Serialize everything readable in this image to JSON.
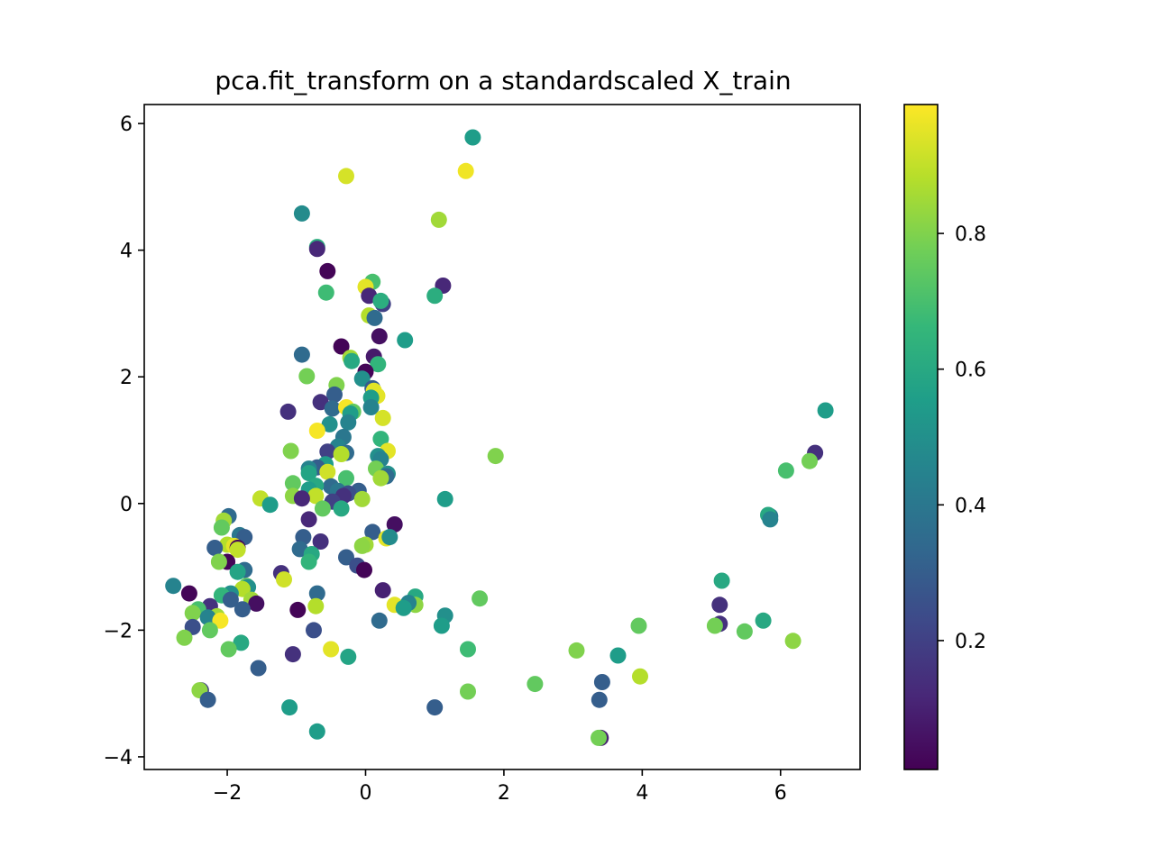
{
  "chart_data": {
    "type": "scatter",
    "title": "pca.fit_transform on a standardscaled X_train",
    "xlabel": "",
    "ylabel": "",
    "xlim": [
      -3.2,
      7.15
    ],
    "ylim": [
      -4.2,
      6.3
    ],
    "xticks": [
      -2,
      0,
      2,
      4,
      6
    ],
    "yticks": [
      -4,
      -2,
      0,
      2,
      4,
      6
    ],
    "colorbar": {
      "cmap": "viridis",
      "range": [
        0.01,
        0.99
      ],
      "ticks": [
        0.2,
        0.4,
        0.6,
        0.8
      ],
      "colors": [
        "#440154",
        "#482878",
        "#3e4989",
        "#31688e",
        "#26828e",
        "#1f9e89",
        "#35b779",
        "#6ece58",
        "#b5de2b",
        "#fde725"
      ]
    },
    "grid": false,
    "points": [
      {
        "x": 1.55,
        "y": 5.78,
        "c": 0.55
      },
      {
        "x": -0.28,
        "y": 5.17,
        "c": 0.93
      },
      {
        "x": 1.45,
        "y": 5.25,
        "c": 0.97
      },
      {
        "x": -0.92,
        "y": 4.58,
        "c": 0.48
      },
      {
        "x": 1.06,
        "y": 4.48,
        "c": 0.85
      },
      {
        "x": -0.7,
        "y": 4.05,
        "c": 0.62
      },
      {
        "x": -0.7,
        "y": 4.02,
        "c": 0.12
      },
      {
        "x": -0.55,
        "y": 3.67,
        "c": 0.02
      },
      {
        "x": 1.12,
        "y": 3.44,
        "c": 0.12
      },
      {
        "x": 0.1,
        "y": 3.5,
        "c": 0.7
      },
      {
        "x": -0.57,
        "y": 3.33,
        "c": 0.68
      },
      {
        "x": 0.0,
        "y": 3.42,
        "c": 0.95
      },
      {
        "x": 0.05,
        "y": 3.28,
        "c": 0.12
      },
      {
        "x": 1.0,
        "y": 3.28,
        "c": 0.62
      },
      {
        "x": 0.25,
        "y": 3.15,
        "c": 0.2
      },
      {
        "x": 0.22,
        "y": 3.2,
        "c": 0.62
      },
      {
        "x": 0.05,
        "y": 2.97,
        "c": 0.88
      },
      {
        "x": 0.13,
        "y": 2.93,
        "c": 0.35
      },
      {
        "x": 0.57,
        "y": 2.58,
        "c": 0.55
      },
      {
        "x": 0.2,
        "y": 2.64,
        "c": 0.05
      },
      {
        "x": -0.35,
        "y": 2.48,
        "c": 0.02
      },
      {
        "x": -0.92,
        "y": 2.35,
        "c": 0.35
      },
      {
        "x": -0.22,
        "y": 2.3,
        "c": 0.85
      },
      {
        "x": 0.12,
        "y": 2.32,
        "c": 0.08
      },
      {
        "x": -0.2,
        "y": 2.25,
        "c": 0.6
      },
      {
        "x": 0.18,
        "y": 2.2,
        "c": 0.65
      },
      {
        "x": 0.0,
        "y": 2.08,
        "c": 0.02
      },
      {
        "x": -0.85,
        "y": 2.01,
        "c": 0.78
      },
      {
        "x": -0.05,
        "y": 1.97,
        "c": 0.5
      },
      {
        "x": -0.42,
        "y": 1.87,
        "c": 0.8
      },
      {
        "x": 0.1,
        "y": 1.82,
        "c": 0.3
      },
      {
        "x": 0.12,
        "y": 1.78,
        "c": 0.95
      },
      {
        "x": -0.45,
        "y": 1.72,
        "c": 0.3
      },
      {
        "x": 0.17,
        "y": 1.7,
        "c": 0.95
      },
      {
        "x": 0.08,
        "y": 1.67,
        "c": 0.55
      },
      {
        "x": -0.65,
        "y": 1.6,
        "c": 0.15
      },
      {
        "x": -0.48,
        "y": 1.5,
        "c": 0.35
      },
      {
        "x": -0.28,
        "y": 1.52,
        "c": 0.98
      },
      {
        "x": 0.08,
        "y": 1.52,
        "c": 0.45
      },
      {
        "x": -1.12,
        "y": 1.45,
        "c": 0.15
      },
      {
        "x": -0.18,
        "y": 1.45,
        "c": 0.75
      },
      {
        "x": -0.22,
        "y": 1.42,
        "c": 0.55
      },
      {
        "x": 0.25,
        "y": 1.35,
        "c": 0.93
      },
      {
        "x": -0.25,
        "y": 1.28,
        "c": 0.45
      },
      {
        "x": -0.52,
        "y": 1.25,
        "c": 0.5
      },
      {
        "x": -0.7,
        "y": 1.15,
        "c": 0.98
      },
      {
        "x": -0.32,
        "y": 1.05,
        "c": 0.4
      },
      {
        "x": 0.22,
        "y": 1.02,
        "c": 0.65
      },
      {
        "x": -0.4,
        "y": 0.9,
        "c": 0.45
      },
      {
        "x": 0.32,
        "y": 0.83,
        "c": 0.95
      },
      {
        "x": -1.08,
        "y": 0.83,
        "c": 0.8
      },
      {
        "x": -0.55,
        "y": 0.82,
        "c": 0.2
      },
      {
        "x": -0.28,
        "y": 0.8,
        "c": 0.35
      },
      {
        "x": -0.35,
        "y": 0.78,
        "c": 0.88
      },
      {
        "x": 1.88,
        "y": 0.75,
        "c": 0.8
      },
      {
        "x": 0.18,
        "y": 0.75,
        "c": 0.5
      },
      {
        "x": 0.22,
        "y": 0.7,
        "c": 0.45
      },
      {
        "x": -0.58,
        "y": 0.62,
        "c": 0.55
      },
      {
        "x": -0.7,
        "y": 0.57,
        "c": 0.3
      },
      {
        "x": -0.82,
        "y": 0.55,
        "c": 0.45
      },
      {
        "x": 0.15,
        "y": 0.55,
        "c": 0.78
      },
      {
        "x": -0.55,
        "y": 0.5,
        "c": 0.92
      },
      {
        "x": -0.82,
        "y": 0.48,
        "c": 0.58
      },
      {
        "x": 0.32,
        "y": 0.47,
        "c": 0.5
      },
      {
        "x": 0.3,
        "y": 0.43,
        "c": 0.35
      },
      {
        "x": 0.22,
        "y": 0.4,
        "c": 0.85
      },
      {
        "x": -0.28,
        "y": 0.4,
        "c": 0.7
      },
      {
        "x": -1.05,
        "y": 0.32,
        "c": 0.75
      },
      {
        "x": -0.5,
        "y": 0.27,
        "c": 0.35
      },
      {
        "x": -0.72,
        "y": 0.28,
        "c": 0.6
      },
      {
        "x": -0.82,
        "y": 0.22,
        "c": 0.55
      },
      {
        "x": -0.4,
        "y": 0.2,
        "c": 0.4
      },
      {
        "x": -0.1,
        "y": 0.2,
        "c": 0.3
      },
      {
        "x": -0.25,
        "y": 0.16,
        "c": 0.25
      },
      {
        "x": -0.32,
        "y": 0.12,
        "c": 0.15
      },
      {
        "x": -1.05,
        "y": 0.12,
        "c": 0.82
      },
      {
        "x": -0.72,
        "y": 0.12,
        "c": 0.9
      },
      {
        "x": -0.92,
        "y": 0.08,
        "c": 0.12
      },
      {
        "x": -1.52,
        "y": 0.08,
        "c": 0.9
      },
      {
        "x": 1.15,
        "y": 0.07,
        "c": 0.55
      },
      {
        "x": -0.05,
        "y": 0.07,
        "c": 0.85
      },
      {
        "x": -0.48,
        "y": 0.03,
        "c": 0.2
      },
      {
        "x": -1.38,
        "y": -0.02,
        "c": 0.55
      },
      {
        "x": -0.62,
        "y": -0.08,
        "c": 0.75
      },
      {
        "x": -0.35,
        "y": -0.08,
        "c": 0.6
      },
      {
        "x": -1.98,
        "y": -0.2,
        "c": 0.35
      },
      {
        "x": -2.05,
        "y": -0.27,
        "c": 0.85
      },
      {
        "x": -0.82,
        "y": -0.25,
        "c": 0.12
      },
      {
        "x": 0.42,
        "y": -0.33,
        "c": 0.05
      },
      {
        "x": -2.08,
        "y": -0.38,
        "c": 0.75
      },
      {
        "x": 0.1,
        "y": -0.45,
        "c": 0.3
      },
      {
        "x": -1.82,
        "y": -0.5,
        "c": 0.4
      },
      {
        "x": -1.75,
        "y": -0.53,
        "c": 0.3
      },
      {
        "x": 0.3,
        "y": -0.55,
        "c": 0.95
      },
      {
        "x": 0.35,
        "y": -0.53,
        "c": 0.48
      },
      {
        "x": -0.9,
        "y": -0.53,
        "c": 0.3
      },
      {
        "x": -0.65,
        "y": -0.6,
        "c": 0.15
      },
      {
        "x": 0.0,
        "y": -0.65,
        "c": 0.85
      },
      {
        "x": -0.05,
        "y": -0.67,
        "c": 0.82
      },
      {
        "x": -2.0,
        "y": -0.65,
        "c": 0.88
      },
      {
        "x": -1.9,
        "y": -0.67,
        "c": 0.95
      },
      {
        "x": -2.18,
        "y": -0.7,
        "c": 0.3
      },
      {
        "x": -1.85,
        "y": -0.7,
        "c": 0.02
      },
      {
        "x": -0.95,
        "y": -0.72,
        "c": 0.35
      },
      {
        "x": -1.85,
        "y": -0.73,
        "c": 0.9
      },
      {
        "x": -0.78,
        "y": -0.8,
        "c": 0.6
      },
      {
        "x": -0.28,
        "y": -0.85,
        "c": 0.3
      },
      {
        "x": -0.82,
        "y": -0.92,
        "c": 0.65
      },
      {
        "x": -2.0,
        "y": -0.92,
        "c": 0.02
      },
      {
        "x": -2.12,
        "y": -0.92,
        "c": 0.8
      },
      {
        "x": -0.12,
        "y": -0.98,
        "c": 0.25
      },
      {
        "x": -0.02,
        "y": -1.05,
        "c": 0.02
      },
      {
        "x": -1.75,
        "y": -1.05,
        "c": 0.35
      },
      {
        "x": -1.85,
        "y": -1.08,
        "c": 0.58
      },
      {
        "x": -1.22,
        "y": -1.1,
        "c": 0.15
      },
      {
        "x": -1.18,
        "y": -1.2,
        "c": 0.92
      },
      {
        "x": -2.78,
        "y": -1.3,
        "c": 0.45
      },
      {
        "x": -1.72,
        "y": -1.3,
        "c": 0.75
      },
      {
        "x": -1.7,
        "y": -1.32,
        "c": 0.5
      },
      {
        "x": -1.78,
        "y": -1.35,
        "c": 0.88
      },
      {
        "x": 0.25,
        "y": -1.37,
        "c": 0.1
      },
      {
        "x": -2.55,
        "y": -1.42,
        "c": 0.02
      },
      {
        "x": -1.95,
        "y": -1.42,
        "c": 0.5
      },
      {
        "x": -2.08,
        "y": -1.45,
        "c": 0.65
      },
      {
        "x": -0.7,
        "y": -1.42,
        "c": 0.35
      },
      {
        "x": 0.72,
        "y": -1.47,
        "c": 0.6
      },
      {
        "x": -1.95,
        "y": -1.52,
        "c": 0.3
      },
      {
        "x": -1.65,
        "y": -1.52,
        "c": 0.85
      },
      {
        "x": 1.65,
        "y": -1.5,
        "c": 0.75
      },
      {
        "x": -1.58,
        "y": -1.58,
        "c": 0.05
      },
      {
        "x": 0.42,
        "y": -1.6,
        "c": 0.95
      },
      {
        "x": 0.72,
        "y": -1.6,
        "c": 0.82
      },
      {
        "x": 0.62,
        "y": -1.57,
        "c": 0.45
      },
      {
        "x": 0.55,
        "y": -1.65,
        "c": 0.55
      },
      {
        "x": -0.72,
        "y": -1.62,
        "c": 0.88
      },
      {
        "x": -2.25,
        "y": -1.62,
        "c": 0.15
      },
      {
        "x": -2.42,
        "y": -1.67,
        "c": 0.7
      },
      {
        "x": -1.78,
        "y": -1.67,
        "c": 0.3
      },
      {
        "x": -0.98,
        "y": -1.68,
        "c": 0.02
      },
      {
        "x": -2.5,
        "y": -1.73,
        "c": 0.8
      },
      {
        "x": -2.15,
        "y": -1.78,
        "c": 0.85
      },
      {
        "x": -2.28,
        "y": -1.8,
        "c": 0.45
      },
      {
        "x": 1.15,
        "y": -1.77,
        "c": 0.5
      },
      {
        "x": 0.2,
        "y": -1.85,
        "c": 0.35
      },
      {
        "x": -2.1,
        "y": -1.85,
        "c": 0.98
      },
      {
        "x": 5.75,
        "y": -1.85,
        "c": 0.6
      },
      {
        "x": 5.12,
        "y": -1.9,
        "c": 0.15
      },
      {
        "x": 1.1,
        "y": -1.93,
        "c": 0.55
      },
      {
        "x": 3.95,
        "y": -1.93,
        "c": 0.75
      },
      {
        "x": 5.05,
        "y": -1.93,
        "c": 0.78
      },
      {
        "x": -2.5,
        "y": -1.95,
        "c": 0.25
      },
      {
        "x": -2.25,
        "y": -2.0,
        "c": 0.75
      },
      {
        "x": 5.48,
        "y": -2.02,
        "c": 0.75
      },
      {
        "x": -0.75,
        "y": -2.0,
        "c": 0.25
      },
      {
        "x": -2.62,
        "y": -2.12,
        "c": 0.8
      },
      {
        "x": 6.18,
        "y": -2.17,
        "c": 0.82
      },
      {
        "x": -1.8,
        "y": -2.2,
        "c": 0.6
      },
      {
        "x": -1.98,
        "y": -2.3,
        "c": 0.75
      },
      {
        "x": 1.48,
        "y": -2.3,
        "c": 0.68
      },
      {
        "x": -0.5,
        "y": -2.3,
        "c": 0.95
      },
      {
        "x": 3.05,
        "y": -2.32,
        "c": 0.8
      },
      {
        "x": -1.05,
        "y": -2.38,
        "c": 0.15
      },
      {
        "x": -0.25,
        "y": -2.42,
        "c": 0.58
      },
      {
        "x": 3.65,
        "y": -2.4,
        "c": 0.55
      },
      {
        "x": -1.55,
        "y": -2.6,
        "c": 0.3
      },
      {
        "x": 3.97,
        "y": -2.73,
        "c": 0.88
      },
      {
        "x": 3.42,
        "y": -2.82,
        "c": 0.3
      },
      {
        "x": 2.45,
        "y": -2.85,
        "c": 0.75
      },
      {
        "x": -2.38,
        "y": -2.95,
        "c": 0.2
      },
      {
        "x": -2.4,
        "y": -2.95,
        "c": 0.82
      },
      {
        "x": 1.48,
        "y": -2.97,
        "c": 0.78
      },
      {
        "x": 3.38,
        "y": -3.1,
        "c": 0.3
      },
      {
        "x": -2.28,
        "y": -3.1,
        "c": 0.3
      },
      {
        "x": -1.1,
        "y": -3.22,
        "c": 0.55
      },
      {
        "x": 1.0,
        "y": -3.22,
        "c": 0.3
      },
      {
        "x": -0.7,
        "y": -3.6,
        "c": 0.55
      },
      {
        "x": 3.4,
        "y": -3.7,
        "c": 0.1
      },
      {
        "x": 3.37,
        "y": -3.7,
        "c": 0.78
      },
      {
        "x": 6.65,
        "y": 1.47,
        "c": 0.55
      },
      {
        "x": 6.5,
        "y": 0.8,
        "c": 0.15
      },
      {
        "x": 6.42,
        "y": 0.67,
        "c": 0.78
      },
      {
        "x": 6.08,
        "y": 0.52,
        "c": 0.7
      },
      {
        "x": 5.85,
        "y": -0.2,
        "c": 0.4
      },
      {
        "x": 5.82,
        "y": -0.18,
        "c": 0.6
      },
      {
        "x": 5.85,
        "y": -0.25,
        "c": 0.45
      },
      {
        "x": 5.15,
        "y": -1.22,
        "c": 0.6
      },
      {
        "x": 5.12,
        "y": -1.6,
        "c": 0.15
      }
    ]
  }
}
